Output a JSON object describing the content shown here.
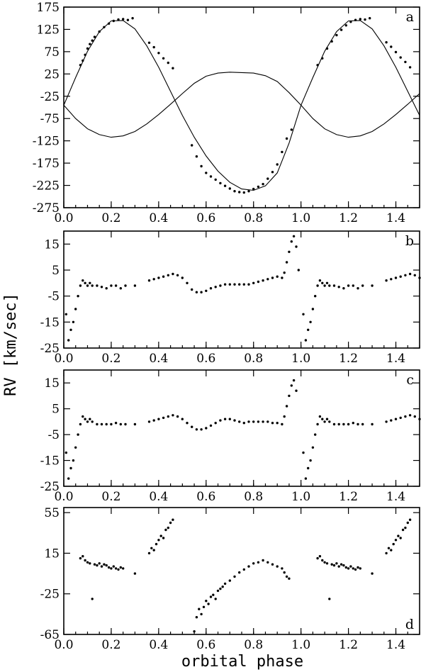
{
  "figure": {
    "ylabel": "RV  [km/sec]",
    "xlabel": "orbital  phase"
  },
  "chart_data": [
    {
      "type": "scatter",
      "panel": "a",
      "xlim": [
        0.0,
        1.5
      ],
      "ylim": [
        -275,
        175
      ],
      "xticks": [
        "0.0",
        "0.2",
        "0.4",
        "0.6",
        "0.8",
        "1.0",
        "1.2",
        "1.4"
      ],
      "yticks": [
        "175",
        "125",
        "75",
        "25",
        "-25",
        "-75",
        "-125",
        "-175",
        "-225",
        "-275"
      ],
      "series": [
        {
          "kind": "curve",
          "x": [
            0.0,
            0.05,
            0.1,
            0.15,
            0.2,
            0.25,
            0.3,
            0.35,
            0.4,
            0.45,
            0.5,
            0.55,
            0.6,
            0.65,
            0.7,
            0.75,
            0.8,
            0.85,
            0.9,
            0.95,
            1.0,
            1.05,
            1.1,
            1.15,
            1.2,
            1.25,
            1.3,
            1.35,
            1.4,
            1.45,
            1.5
          ],
          "y": [
            -45,
            17,
            76,
            120,
            144,
            145,
            126,
            88,
            40,
            -14,
            -68,
            -117,
            -159,
            -193,
            -218,
            -233,
            -236,
            -226,
            -197,
            -130,
            -45,
            17,
            76,
            120,
            144,
            145,
            126,
            88,
            40,
            -14,
            -68
          ]
        },
        {
          "kind": "curve",
          "x": [
            0.0,
            0.05,
            0.1,
            0.15,
            0.2,
            0.25,
            0.3,
            0.35,
            0.4,
            0.45,
            0.5,
            0.55,
            0.6,
            0.65,
            0.7,
            0.75,
            0.8,
            0.85,
            0.9,
            0.95,
            1.0,
            1.05,
            1.1,
            1.15,
            1.2,
            1.25,
            1.3,
            1.35,
            1.4,
            1.45,
            1.5
          ],
          "y": [
            -45,
            -75,
            -98,
            -111,
            -117,
            -114,
            -104,
            -87,
            -66,
            -43,
            -19,
            4,
            20,
            27,
            29,
            28,
            27,
            21,
            8,
            -17,
            -45,
            -75,
            -98,
            -111,
            -117,
            -114,
            -104,
            -87,
            -66,
            -43,
            -19
          ]
        },
        {
          "kind": "points",
          "x": [
            0.07,
            0.08,
            0.09,
            0.1,
            0.11,
            0.12,
            0.13,
            0.15,
            0.17,
            0.19,
            0.21,
            0.23,
            0.25,
            0.27,
            0.29,
            0.36,
            0.38,
            0.4,
            0.42,
            0.44,
            0.46,
            0.54,
            0.56,
            0.58,
            0.6,
            0.62,
            0.64,
            0.66,
            0.68,
            0.7,
            0.72,
            0.74,
            0.76,
            0.78,
            0.8,
            0.82,
            0.84,
            0.86,
            0.88,
            0.9,
            0.92,
            0.94,
            0.96,
            1.07,
            1.09,
            1.11,
            1.13,
            1.15,
            1.17,
            1.19,
            1.21,
            1.23,
            1.25,
            1.27,
            1.29,
            1.36,
            1.38,
            1.4,
            1.42,
            1.44,
            1.46
          ],
          "y": [
            45,
            55,
            68,
            82,
            92,
            100,
            108,
            120,
            130,
            138,
            144,
            147,
            148,
            146,
            150,
            95,
            85,
            72,
            60,
            50,
            38,
            -135,
            -160,
            -182,
            -197,
            -205,
            -212,
            -220,
            -226,
            -232,
            -238,
            -240,
            -241,
            -238,
            -233,
            -228,
            -222,
            -210,
            -195,
            -178,
            -150,
            -120,
            -100,
            45,
            60,
            82,
            98,
            112,
            124,
            134,
            142,
            146,
            148,
            147,
            150,
            96,
            86,
            74,
            62,
            52,
            40
          ]
        }
      ]
    },
    {
      "type": "scatter",
      "panel": "b",
      "xlim": [
        0.0,
        1.5
      ],
      "ylim": [
        -25,
        20
      ],
      "xticks": [
        "0.0",
        "0.2",
        "0.4",
        "0.6",
        "0.8",
        "1.0",
        "1.2",
        "1.4"
      ],
      "yticks": [
        "15",
        "5",
        "-5",
        "-15",
        "-25"
      ],
      "series": [
        {
          "kind": "points",
          "x": [
            0.01,
            0.02,
            0.03,
            0.04,
            0.05,
            0.06,
            0.07,
            0.08,
            0.09,
            0.1,
            0.11,
            0.12,
            0.14,
            0.16,
            0.18,
            0.2,
            0.22,
            0.24,
            0.26,
            0.3,
            0.36,
            0.38,
            0.4,
            0.42,
            0.44,
            0.46,
            0.48,
            0.5,
            0.52,
            0.54,
            0.56,
            0.58,
            0.6,
            0.62,
            0.64,
            0.66,
            0.68,
            0.7,
            0.72,
            0.74,
            0.76,
            0.78,
            0.8,
            0.82,
            0.84,
            0.86,
            0.88,
            0.9,
            0.92,
            0.93,
            0.94,
            0.95,
            0.96,
            0.97,
            0.98,
            0.99,
            1.01,
            1.02,
            1.03,
            1.04,
            1.05,
            1.06,
            1.07,
            1.08,
            1.09,
            1.1,
            1.11,
            1.12,
            1.14,
            1.16,
            1.18,
            1.2,
            1.22,
            1.24,
            1.26,
            1.3,
            1.36,
            1.38,
            1.4,
            1.42,
            1.44,
            1.46,
            1.48,
            1.5
          ],
          "y": [
            -12,
            -22,
            -18,
            -15,
            -10,
            -5,
            -1,
            1,
            0,
            -1,
            0,
            -1,
            -1,
            -1.5,
            -2,
            -1,
            -1,
            -2,
            -1,
            -1,
            1,
            1.5,
            2,
            2.5,
            3,
            3.5,
            3,
            2,
            0,
            -2.5,
            -3.5,
            -3.5,
            -3,
            -2,
            -1.5,
            -1,
            -0.5,
            -0.5,
            -0.5,
            -0.5,
            -0.5,
            -0.5,
            0,
            0.5,
            1,
            1.5,
            2,
            2.5,
            2,
            4,
            8,
            12,
            16,
            18,
            14,
            5,
            -12,
            -22,
            -18,
            -15,
            -10,
            -5,
            -1,
            1,
            0,
            -1,
            0,
            -1,
            -1,
            -1.5,
            -2,
            -1,
            -1,
            -2,
            -1,
            -1,
            1,
            1.5,
            2,
            2.5,
            3,
            3.5,
            3,
            2
          ]
        }
      ]
    },
    {
      "type": "scatter",
      "panel": "c",
      "xlim": [
        0.0,
        1.5
      ],
      "ylim": [
        -25,
        20
      ],
      "xticks": [
        "0.0",
        "0.2",
        "0.4",
        "0.6",
        "0.8",
        "1.0",
        "1.2",
        "1.4"
      ],
      "yticks": [
        "15",
        "5",
        "-5",
        "-15",
        "-25"
      ],
      "series": [
        {
          "kind": "points",
          "x": [
            0.01,
            0.02,
            0.03,
            0.04,
            0.05,
            0.06,
            0.07,
            0.08,
            0.09,
            0.1,
            0.11,
            0.12,
            0.14,
            0.16,
            0.18,
            0.2,
            0.22,
            0.24,
            0.26,
            0.3,
            0.36,
            0.38,
            0.4,
            0.42,
            0.44,
            0.46,
            0.48,
            0.5,
            0.52,
            0.54,
            0.56,
            0.58,
            0.6,
            0.62,
            0.64,
            0.66,
            0.68,
            0.7,
            0.72,
            0.74,
            0.76,
            0.78,
            0.8,
            0.82,
            0.84,
            0.86,
            0.88,
            0.9,
            0.92,
            0.93,
            0.94,
            0.95,
            0.96,
            0.97,
            0.98,
            1.01,
            1.02,
            1.03,
            1.04,
            1.05,
            1.06,
            1.07,
            1.08,
            1.09,
            1.1,
            1.11,
            1.12,
            1.14,
            1.16,
            1.18,
            1.2,
            1.22,
            1.24,
            1.26,
            1.3,
            1.36,
            1.38,
            1.4,
            1.42,
            1.44,
            1.46,
            1.48,
            1.5
          ],
          "y": [
            -12,
            -22,
            -18,
            -15,
            -10,
            -5,
            -1,
            2,
            1,
            0,
            1,
            0,
            -1,
            -1,
            -1,
            -1,
            -0.5,
            -1,
            -1,
            -1,
            0,
            0.5,
            1,
            1.5,
            2,
            2.5,
            2,
            1,
            -0.5,
            -2,
            -3,
            -3,
            -2.5,
            -1.5,
            -0.5,
            0.5,
            1,
            1,
            0.5,
            0,
            -0.5,
            0,
            0,
            0,
            0,
            0,
            -0.5,
            -0.5,
            -1,
            2,
            6,
            10,
            14,
            16,
            12,
            -12,
            -22,
            -18,
            -15,
            -10,
            -5,
            -1,
            2,
            1,
            0,
            1,
            0,
            -1,
            -1,
            -1,
            -1,
            -0.5,
            -1,
            -1,
            -1,
            0,
            0.5,
            1,
            1.5,
            2,
            2.5,
            2,
            1
          ]
        }
      ]
    },
    {
      "type": "scatter",
      "panel": "d",
      "xlim": [
        0.0,
        1.5
      ],
      "ylim": [
        -65,
        60
      ],
      "xticks": [
        "0.0",
        "0.2",
        "0.4",
        "0.6",
        "0.8",
        "1.0",
        "1.2",
        "1.4"
      ],
      "yticks": [
        "55",
        "15",
        "-25",
        "-65"
      ],
      "series": [
        {
          "kind": "points",
          "x": [
            0.07,
            0.08,
            0.09,
            0.1,
            0.11,
            0.12,
            0.13,
            0.14,
            0.15,
            0.16,
            0.17,
            0.18,
            0.19,
            0.2,
            0.21,
            0.22,
            0.23,
            0.24,
            0.25,
            0.3,
            0.36,
            0.37,
            0.38,
            0.39,
            0.4,
            0.41,
            0.42,
            0.43,
            0.44,
            0.45,
            0.46,
            0.55,
            0.56,
            0.57,
            0.58,
            0.59,
            0.6,
            0.61,
            0.62,
            0.63,
            0.64,
            0.65,
            0.66,
            0.67,
            0.68,
            0.7,
            0.72,
            0.74,
            0.76,
            0.78,
            0.8,
            0.82,
            0.84,
            0.86,
            0.88,
            0.9,
            0.92,
            0.93,
            0.94,
            0.95,
            1.07,
            1.08,
            1.09,
            1.1,
            1.11,
            1.12,
            1.13,
            1.14,
            1.15,
            1.16,
            1.17,
            1.18,
            1.19,
            1.2,
            1.21,
            1.22,
            1.23,
            1.24,
            1.25,
            1.3,
            1.36,
            1.37,
            1.38,
            1.39,
            1.4,
            1.41,
            1.42,
            1.43,
            1.44,
            1.45,
            1.46
          ],
          "y": [
            10,
            12,
            8,
            6,
            5,
            -30,
            4,
            3,
            5,
            2,
            4,
            3,
            1,
            0,
            2,
            0,
            -1,
            1,
            0,
            -5,
            15,
            20,
            18,
            24,
            28,
            32,
            30,
            38,
            40,
            45,
            48,
            -62,
            -48,
            -40,
            -45,
            -38,
            -32,
            -35,
            -28,
            -26,
            -30,
            -22,
            -20,
            -18,
            -15,
            -12,
            -8,
            -4,
            -1,
            2,
            5,
            6,
            8,
            6,
            4,
            2,
            0,
            -4,
            -8,
            -10,
            10,
            12,
            8,
            6,
            5,
            -30,
            4,
            3,
            5,
            2,
            4,
            3,
            1,
            0,
            2,
            0,
            -1,
            1,
            0,
            -5,
            15,
            20,
            18,
            24,
            28,
            32,
            30,
            38,
            40,
            45,
            48
          ]
        }
      ]
    }
  ]
}
